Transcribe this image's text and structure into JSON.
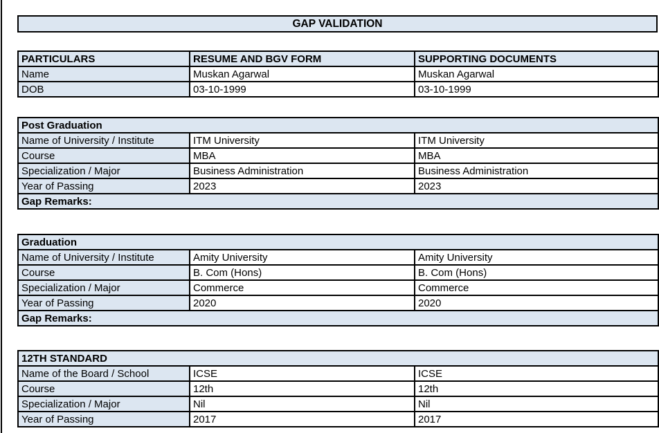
{
  "page": {
    "title": "GAP VALIDATION"
  },
  "colors": {
    "header_fill": "#dce6f1",
    "border": "#000000",
    "text": "#000000",
    "background": "#ffffff"
  },
  "particulars_table": {
    "headers": [
      "PARTICULARS",
      "RESUME AND BGV FORM",
      "SUPPORTING DOCUMENTS"
    ],
    "rows": [
      {
        "label": "Name",
        "resume": "Muskan Agarwal",
        "supporting": "Muskan Agarwal"
      },
      {
        "label": "DOB",
        "resume": "03-10-1999",
        "supporting": "03-10-1999"
      }
    ]
  },
  "sections": [
    {
      "title": "Post Graduation",
      "rows": [
        {
          "label": "Name of University / Institute",
          "resume": "ITM University",
          "supporting": "ITM University"
        },
        {
          "label": "Course",
          "resume": "MBA",
          "supporting": "MBA"
        },
        {
          "label": "Specialization / Major",
          "resume": "Business Administration",
          "supporting": "Business Administration"
        },
        {
          "label": "Year of Passing",
          "resume": "2023",
          "supporting": "2023"
        }
      ],
      "gap_remarks_label": "Gap Remarks:",
      "gap_remarks_value": ""
    },
    {
      "title": "Graduation",
      "rows": [
        {
          "label": "Name of University / Institute",
          "resume": "Amity University",
          "supporting": "Amity University"
        },
        {
          "label": "Course",
          "resume": "B. Com (Hons)",
          "supporting": "B. Com (Hons)"
        },
        {
          "label": "Specialization / Major",
          "resume": "Commerce",
          "supporting": "Commerce"
        },
        {
          "label": "Year of Passing",
          "resume": "2020",
          "supporting": "2020"
        }
      ],
      "gap_remarks_label": "Gap Remarks:",
      "gap_remarks_value": ""
    },
    {
      "title": "12TH STANDARD",
      "rows": [
        {
          "label": "Name of the Board / School",
          "resume": "ICSE",
          "supporting": "ICSE"
        },
        {
          "label": "Course",
          "resume": "12th",
          "supporting": "12th"
        },
        {
          "label": "Specialization / Major",
          "resume": "Nil",
          "supporting": "Nil"
        },
        {
          "label": "Year of Passing",
          "resume": "2017",
          "supporting": "2017"
        }
      ]
    }
  ]
}
